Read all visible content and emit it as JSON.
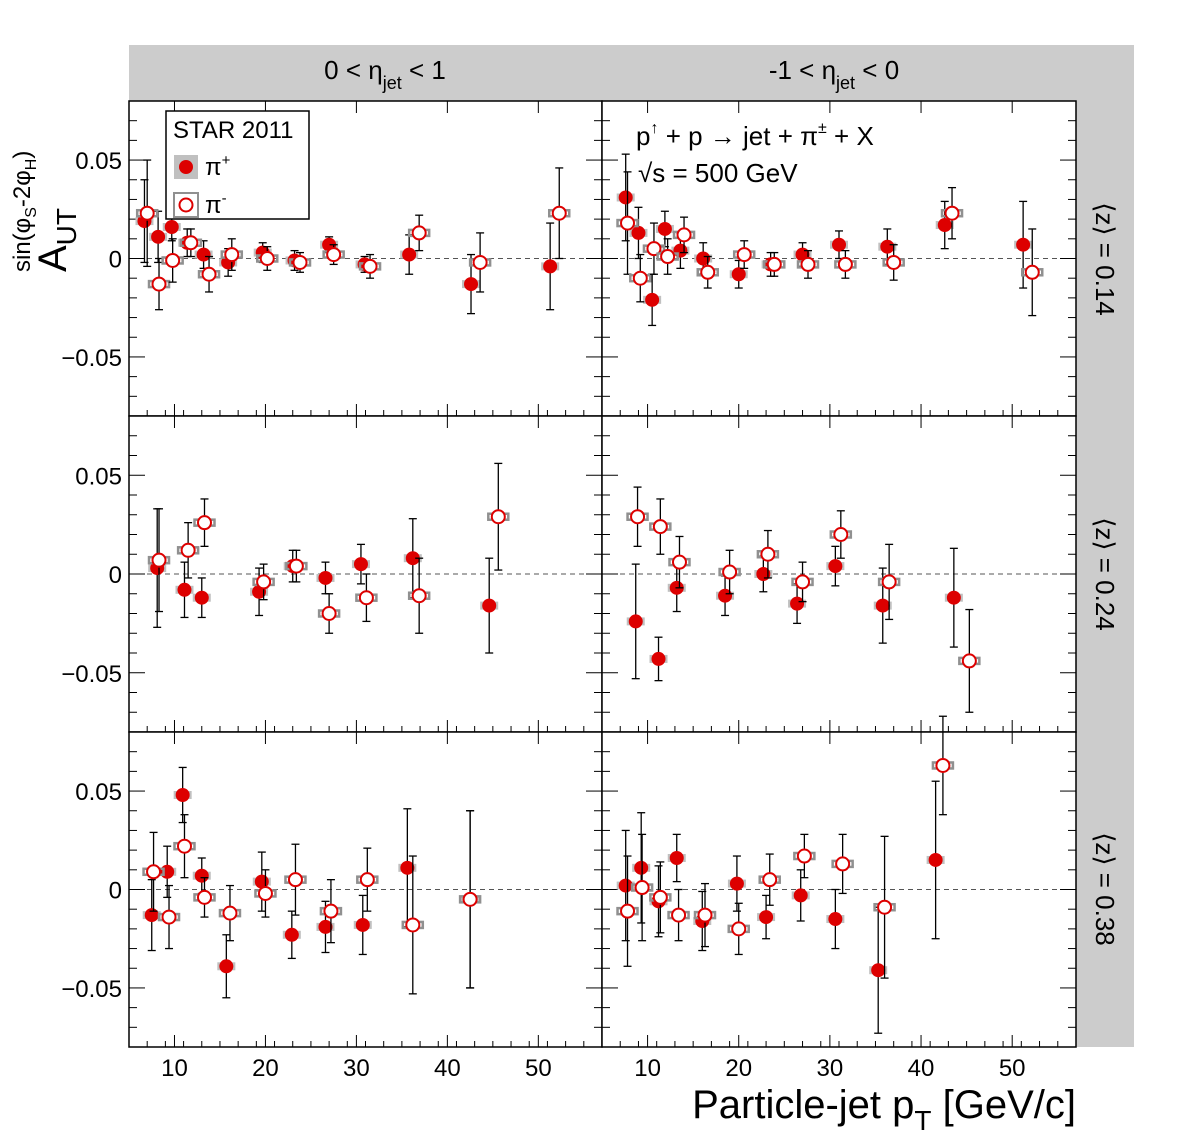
{
  "chart_data": {
    "type": "scatter",
    "x_axis": {
      "label": "Particle-jet p",
      "label_sub": "T",
      "label_suffix": " [GeV/c]",
      "range": [
        5,
        57
      ],
      "ticks": [
        10,
        20,
        30,
        40,
        50
      ]
    },
    "y_axis": {
      "label": "A",
      "label_sub": "UT",
      "label_sup": "sin(φ",
      "label_sup_sub": "S",
      "label_sup_mid": "-2φ",
      "label_sup_sub2": "H",
      "label_sup_end": ")",
      "range": [
        -0.08,
        0.08
      ],
      "tick_labels": [
        "0.05",
        "0",
        "−0.05"
      ],
      "tick_values": [
        0.05,
        0,
        -0.05
      ]
    },
    "columns": [
      {
        "pre": "0 < η",
        "sub": "jet",
        "post": " < 1"
      },
      {
        "pre": "-1 < η",
        "sub": "jet",
        "post": " < 0"
      }
    ],
    "rows": [
      {
        "label": "⟨z⟩ = 0.14"
      },
      {
        "label": "⟨z⟩ = 0.24"
      },
      {
        "label": "⟨z⟩ = 0.38"
      }
    ],
    "legend": {
      "title": "STAR 2011",
      "entries": [
        {
          "name": "π",
          "sup": "+",
          "marker": "filled-circle"
        },
        {
          "name": "π",
          "sup": "-",
          "marker": "open-circle"
        }
      ]
    },
    "annotation": {
      "reaction_pre": "p",
      "reaction_sup": "↑",
      "reaction_post": " + p → jet + π",
      "reaction_sup2": "±",
      "reaction_end": " + X",
      "energy": "√s = 500 GeV"
    },
    "colors": {
      "marker": "#dd0000",
      "sys_plus": "#c0c0c0",
      "sys_minus": "#909090",
      "strip": "#cccccc",
      "error": "#000000"
    },
    "panels": [
      {
        "row": 0,
        "col": 0,
        "pi_plus": [
          [
            6.7,
            0.019,
            0.021
          ],
          [
            8.2,
            0.011,
            0.013
          ],
          [
            9.7,
            0.016,
            0.007
          ],
          [
            11.4,
            0.008,
            0.007
          ],
          [
            13.2,
            0.002,
            0.007
          ],
          [
            15.9,
            -0.002,
            0.007
          ],
          [
            19.7,
            0.003,
            0.005
          ],
          [
            23.2,
            -0.001,
            0.005
          ],
          [
            27.0,
            0.007,
            0.004
          ],
          [
            30.9,
            -0.003,
            0.004
          ],
          [
            35.8,
            0.002,
            0.01
          ],
          [
            42.6,
            -0.013,
            0.015
          ],
          [
            51.3,
            -0.004,
            0.022
          ]
        ],
        "pi_minus": [
          [
            7.0,
            0.023,
            0.027
          ],
          [
            8.3,
            -0.013,
            0.013
          ],
          [
            9.8,
            -0.001,
            0.011
          ],
          [
            11.8,
            0.008,
            0.007
          ],
          [
            13.8,
            -0.008,
            0.009
          ],
          [
            16.3,
            0.002,
            0.008
          ],
          [
            20.2,
            0.0,
            0.006
          ],
          [
            23.8,
            -0.002,
            0.005
          ],
          [
            27.5,
            0.002,
            0.005
          ],
          [
            31.5,
            -0.004,
            0.006
          ],
          [
            36.9,
            0.013,
            0.009
          ],
          [
            43.6,
            -0.002,
            0.015
          ],
          [
            52.3,
            0.023,
            0.023
          ]
        ]
      },
      {
        "row": 0,
        "col": 1,
        "pi_plus": [
          [
            7.6,
            0.031,
            0.022
          ],
          [
            9.0,
            0.013,
            0.013
          ],
          [
            10.5,
            -0.021,
            0.013
          ],
          [
            11.9,
            0.015,
            0.009
          ],
          [
            13.6,
            0.004,
            0.009
          ],
          [
            16.1,
            0.0,
            0.008
          ],
          [
            20.0,
            -0.008,
            0.007
          ],
          [
            23.5,
            -0.003,
            0.006
          ],
          [
            27.0,
            0.002,
            0.006
          ],
          [
            31.0,
            0.007,
            0.007
          ],
          [
            36.3,
            0.006,
            0.009
          ],
          [
            42.6,
            0.017,
            0.012
          ],
          [
            51.2,
            0.007,
            0.022
          ]
        ],
        "pi_minus": [
          [
            7.8,
            0.018,
            0.026
          ],
          [
            9.2,
            -0.01,
            0.012
          ],
          [
            10.7,
            0.005,
            0.013
          ],
          [
            12.2,
            0.001,
            0.009
          ],
          [
            14.0,
            0.012,
            0.009
          ],
          [
            16.6,
            -0.007,
            0.008
          ],
          [
            20.6,
            0.002,
            0.007
          ],
          [
            23.9,
            -0.003,
            0.006
          ],
          [
            27.6,
            -0.003,
            0.007
          ],
          [
            31.7,
            -0.003,
            0.007
          ],
          [
            37.0,
            -0.002,
            0.009
          ],
          [
            43.4,
            0.023,
            0.013
          ],
          [
            52.2,
            -0.007,
            0.022
          ]
        ]
      },
      {
        "row": 1,
        "col": 0,
        "pi_plus": [
          [
            8.1,
            0.003,
            0.03
          ],
          [
            11.1,
            -0.008,
            0.014
          ],
          [
            13.0,
            -0.012,
            0.01
          ],
          [
            19.3,
            -0.009,
            0.012
          ],
          [
            23.0,
            0.004,
            0.008
          ],
          [
            26.6,
            -0.002,
            0.008
          ],
          [
            30.5,
            0.005,
            0.01
          ],
          [
            36.2,
            0.008,
            0.02
          ],
          [
            44.6,
            -0.016,
            0.024
          ]
        ],
        "pi_minus": [
          [
            8.3,
            0.007,
            0.026
          ],
          [
            11.5,
            0.012,
            0.014
          ],
          [
            13.3,
            0.026,
            0.012
          ],
          [
            19.8,
            -0.004,
            0.009
          ],
          [
            23.4,
            0.004,
            0.008
          ],
          [
            27.0,
            -0.02,
            0.01
          ],
          [
            31.1,
            -0.012,
            0.012
          ],
          [
            36.9,
            -0.011,
            0.019
          ],
          [
            45.6,
            0.029,
            0.027
          ]
        ]
      },
      {
        "row": 1,
        "col": 1,
        "pi_plus": [
          [
            8.7,
            -0.024,
            0.029
          ],
          [
            11.2,
            -0.043,
            0.011
          ],
          [
            13.2,
            -0.007,
            0.012
          ],
          [
            18.5,
            -0.011,
            0.01
          ],
          [
            22.7,
            -0.0,
            0.009
          ],
          [
            26.4,
            -0.015,
            0.01
          ],
          [
            30.6,
            0.004,
            0.01
          ],
          [
            35.8,
            -0.016,
            0.019
          ],
          [
            43.6,
            -0.012,
            0.025
          ]
        ],
        "pi_minus": [
          [
            8.9,
            0.029,
            0.015
          ],
          [
            11.4,
            0.024,
            0.014
          ],
          [
            13.5,
            0.006,
            0.013
          ],
          [
            19.0,
            0.001,
            0.011
          ],
          [
            23.2,
            0.01,
            0.012
          ],
          [
            27.0,
            -0.004,
            0.01
          ],
          [
            31.2,
            0.02,
            0.012
          ],
          [
            36.5,
            -0.004,
            0.019
          ],
          [
            45.3,
            -0.044,
            0.026
          ]
        ]
      },
      {
        "row": 2,
        "col": 0,
        "pi_plus": [
          [
            7.5,
            -0.013,
            0.018
          ],
          [
            9.2,
            0.009,
            0.013
          ],
          [
            10.9,
            0.048,
            0.014
          ],
          [
            13.0,
            0.007,
            0.009
          ],
          [
            15.7,
            -0.039,
            0.016
          ],
          [
            19.6,
            0.004,
            0.015
          ],
          [
            22.9,
            -0.023,
            0.012
          ],
          [
            26.6,
            -0.019,
            0.013
          ],
          [
            30.7,
            -0.018,
            0.015
          ],
          [
            35.6,
            0.011,
            0.03
          ],
          [
            42.5,
            -0.005,
            0.045
          ]
        ],
        "pi_minus": [
          [
            7.7,
            0.009,
            0.02
          ],
          [
            9.4,
            -0.014,
            0.016
          ],
          [
            11.1,
            0.022,
            0.016
          ],
          [
            13.3,
            -0.004,
            0.01
          ],
          [
            16.1,
            -0.012,
            0.014
          ],
          [
            20.0,
            -0.002,
            0.012
          ],
          [
            23.3,
            0.005,
            0.018
          ],
          [
            27.2,
            -0.011,
            0.016
          ],
          [
            31.2,
            0.005,
            0.016
          ],
          [
            36.2,
            -0.018,
            0.035
          ],
          [
            42.5,
            -0.005,
            0.045
          ]
        ]
      },
      {
        "row": 2,
        "col": 1,
        "pi_plus": [
          [
            7.6,
            0.002,
            0.028
          ],
          [
            9.3,
            0.011,
            0.028
          ],
          [
            11.2,
            -0.006,
            0.018
          ],
          [
            13.2,
            0.016,
            0.012
          ],
          [
            16.0,
            -0.016,
            0.015
          ],
          [
            19.8,
            0.003,
            0.014
          ],
          [
            23.0,
            -0.014,
            0.011
          ],
          [
            26.8,
            -0.003,
            0.013
          ],
          [
            30.6,
            -0.015,
            0.015
          ],
          [
            35.3,
            -0.041,
            0.032
          ],
          [
            41.6,
            0.015,
            0.04
          ]
        ],
        "pi_minus": [
          [
            7.8,
            -0.011,
            0.028
          ],
          [
            9.4,
            0.001,
            0.027
          ],
          [
            11.4,
            -0.004,
            0.018
          ],
          [
            13.4,
            -0.013,
            0.013
          ],
          [
            16.3,
            -0.013,
            0.016
          ],
          [
            20.0,
            -0.02,
            0.013
          ],
          [
            23.4,
            0.005,
            0.013
          ],
          [
            27.2,
            0.017,
            0.011
          ],
          [
            31.4,
            0.013,
            0.015
          ],
          [
            36.0,
            -0.009,
            0.036
          ],
          [
            42.4,
            0.063,
            0.025
          ]
        ]
      }
    ]
  }
}
